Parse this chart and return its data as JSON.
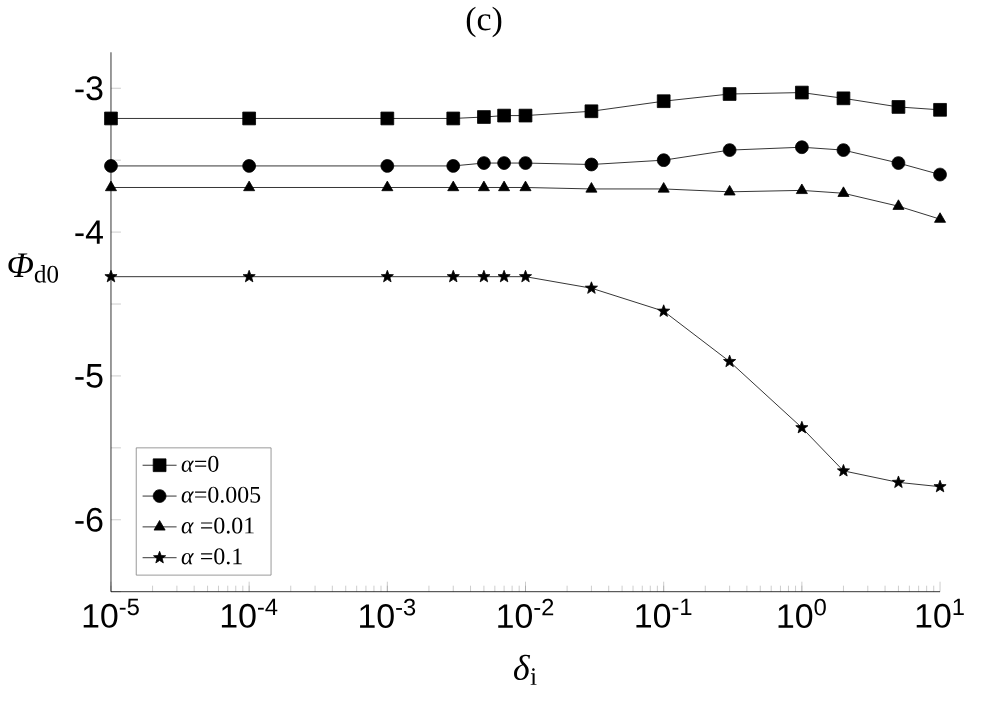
{
  "chart_data": {
    "type": "line",
    "title": "(c)",
    "xlabel": "*δ*$_{i}$",
    "ylabel": "*Φ*$_{d0}$",
    "log": "x",
    "xlim": [
      1e-05,
      10
    ],
    "ylim": [
      -6.5,
      -2.75
    ],
    "xticks": [
      {
        "value": 1e-05,
        "label": "10$^{-5}$"
      },
      {
        "value": 0.0001,
        "label": "10$^{-4}$"
      },
      {
        "value": 0.001,
        "label": "10$^{-3}$"
      },
      {
        "value": 0.01,
        "label": "10$^{-2}$"
      },
      {
        "value": 0.1,
        "label": "10$^{-1}$"
      },
      {
        "value": 1,
        "label": "10$^{0}$"
      },
      {
        "value": 10,
        "label": "10$^{1}$"
      }
    ],
    "yticks": [
      {
        "value": -6.5,
        "label": null
      },
      -6,
      {
        "value": -5.5,
        "label": null
      },
      -5,
      {
        "value": -4.5,
        "label": null
      },
      -4,
      {
        "value": -3.5,
        "label": null
      },
      -3
    ],
    "x": [
      1e-05,
      0.0001,
      0.001,
      0.003,
      0.005,
      0.007,
      0.01,
      0.03,
      0.1,
      0.3,
      1,
      2,
      5,
      10
    ],
    "legend": "bottom left",
    "grid": false,
    "line_style": "solid",
    "series": [
      {
        "name": "*α*=0",
        "color": "#000000",
        "marker": "square",
        "values": [
          -3.21,
          -3.21,
          -3.21,
          -3.21,
          -3.2,
          -3.19,
          -3.19,
          -3.16,
          -3.09,
          -3.04,
          -3.03,
          -3.07,
          -3.13,
          -3.15
        ]
      },
      {
        "name": "*α*=0.005",
        "color": "#000000",
        "marker": "circle",
        "values": [
          -3.54,
          -3.54,
          -3.54,
          -3.54,
          -3.52,
          -3.52,
          -3.52,
          -3.53,
          -3.5,
          -3.43,
          -3.41,
          -3.43,
          -3.52,
          -3.6
        ]
      },
      {
        "name": "*α* =0.01",
        "color": "#000000",
        "marker": "triangle",
        "values": [
          -3.69,
          -3.69,
          -3.69,
          -3.69,
          -3.69,
          -3.69,
          -3.69,
          -3.7,
          -3.7,
          -3.72,
          -3.71,
          -3.73,
          -3.82,
          -3.91
        ]
      },
      {
        "name": "*α* =0.1",
        "color": "#000000",
        "marker": "star",
        "values": [
          -4.31,
          -4.31,
          -4.31,
          -4.31,
          -4.31,
          -4.31,
          -4.31,
          -4.39,
          -4.55,
          -4.9,
          -5.36,
          -5.66,
          -5.74,
          -5.77
        ]
      }
    ]
  }
}
